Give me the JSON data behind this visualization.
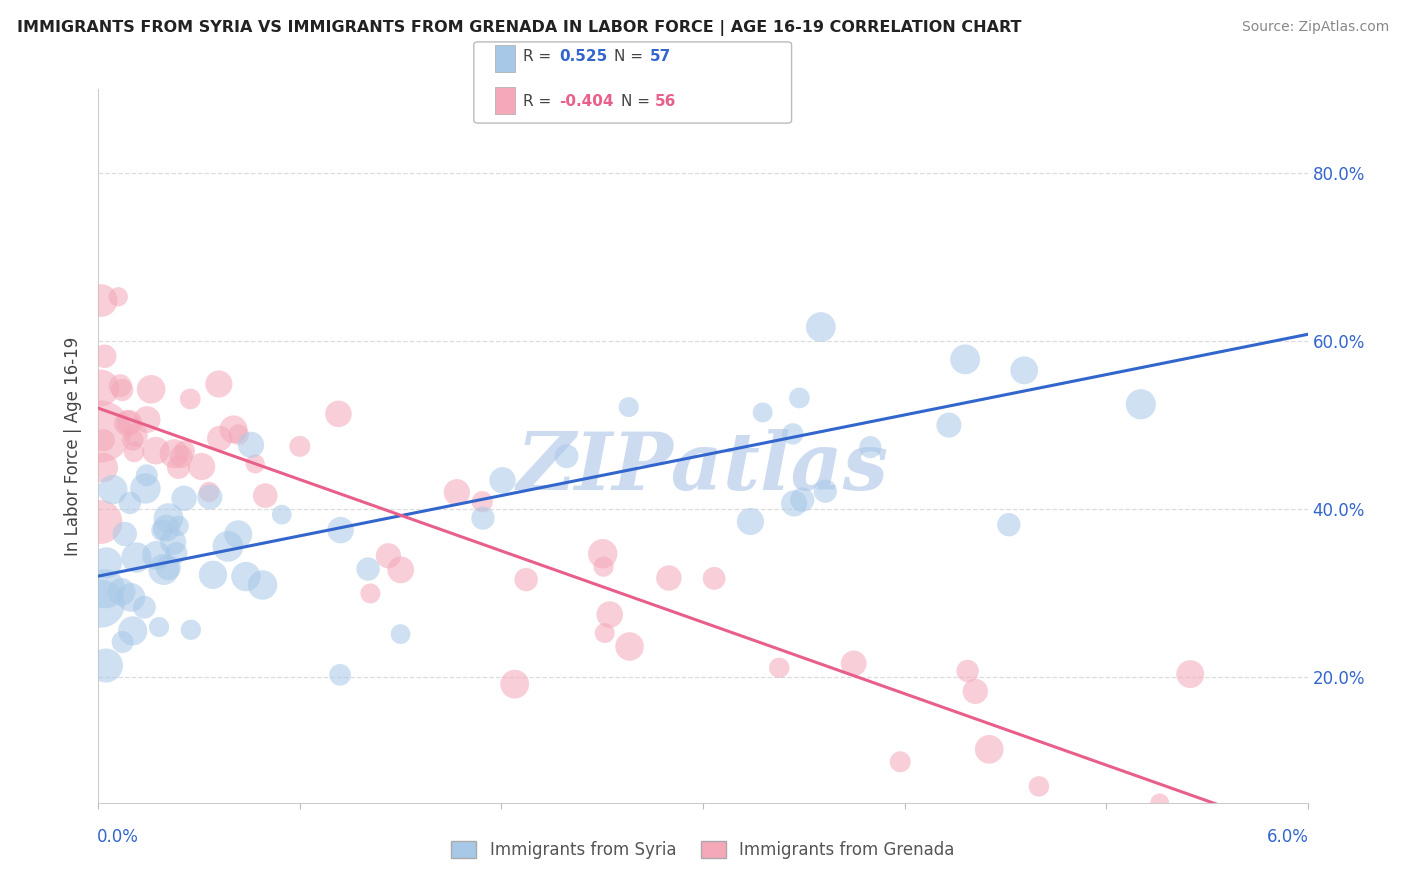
{
  "title": "IMMIGRANTS FROM SYRIA VS IMMIGRANTS FROM GRENADA IN LABOR FORCE | AGE 16-19 CORRELATION CHART",
  "source": "Source: ZipAtlas.com",
  "ylabel": "In Labor Force | Age 16-19",
  "y_ticks": [
    0.2,
    0.4,
    0.6,
    0.8
  ],
  "y_tick_labels": [
    "20.0%",
    "40.0%",
    "60.0%",
    "80.0%"
  ],
  "x_range": [
    0.0,
    0.06
  ],
  "y_range": [
    0.05,
    0.9
  ],
  "legend_r_syria": "0.525",
  "legend_n_syria": "57",
  "legend_r_grenada": "-0.404",
  "legend_n_grenada": "56",
  "color_syria": "#a8c8e8",
  "color_grenada": "#f4a8b8",
  "color_syria_line": "#3366cc",
  "color_grenada_line": "#e8608a",
  "watermark_color": "#c8d8f0",
  "title_color": "#222222",
  "source_color": "#888888",
  "tick_label_color": "#3366cc",
  "ylabel_color": "#444444",
  "grid_color": "#dddddd",
  "syria_intercept": 0.32,
  "syria_slope": 4.8,
  "grenada_intercept": 0.52,
  "grenada_slope": -8.5
}
